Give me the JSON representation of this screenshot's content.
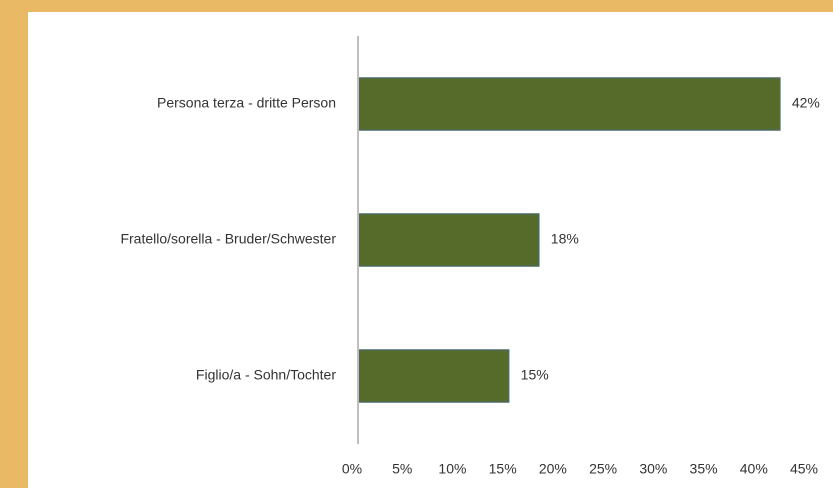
{
  "chart_data": {
    "type": "bar",
    "orientation": "horizontal",
    "categories": [
      "Persona terza - dritte Person",
      "Fratello/sorella - Bruder/Schwester",
      "Figlio/a - Sohn/Tochter"
    ],
    "values": [
      42,
      18,
      15
    ],
    "value_labels": [
      "42%",
      "18%",
      "15%"
    ],
    "color": "#566b2a",
    "xlim": [
      0,
      45
    ],
    "xticks": [
      {
        "value": 0,
        "label": "0%"
      },
      {
        "value": 5,
        "label": "5%"
      },
      {
        "value": 10,
        "label": "10%"
      },
      {
        "value": 15,
        "label": "15%"
      },
      {
        "value": 20,
        "label": "20%"
      },
      {
        "value": 25,
        "label": "25%"
      },
      {
        "value": 30,
        "label": "30%"
      },
      {
        "value": 35,
        "label": "35%"
      },
      {
        "value": 40,
        "label": "40%"
      },
      {
        "value": 45,
        "label": "45%"
      }
    ],
    "grid": false
  }
}
